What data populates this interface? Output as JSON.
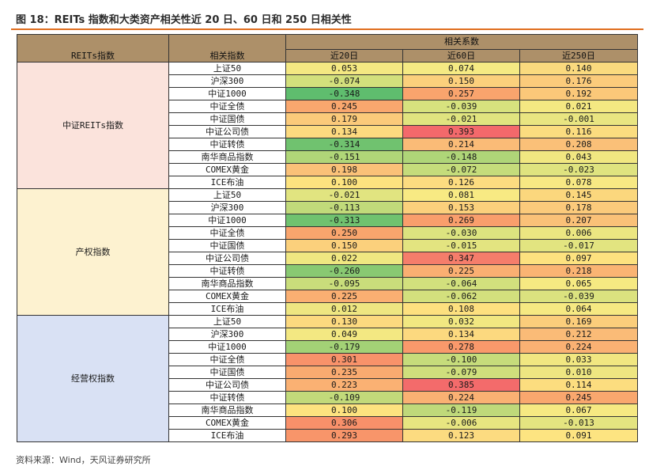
{
  "figure": {
    "title": "图 18：REITs 指数和大类资产相关性近 20 日、60 日和 250 日相关性",
    "source": "资料来源：Wind，天风证券研究所"
  },
  "table": {
    "col_group": "REITs指数",
    "col_index": "相关指数",
    "col_corr": "相关系数",
    "periods": [
      "近20日",
      "近60日",
      "近250日"
    ],
    "groups": [
      {
        "name": "中证REITs指数",
        "rows": [
          {
            "index": "上证50",
            "v": [
              "0.053",
              "0.074",
              "0.140"
            ],
            "c": [
              "#f4e882",
              "#f5ea83",
              "#fada7e"
            ]
          },
          {
            "index": "沪深300",
            "v": [
              "-0.074",
              "0.150",
              "0.176"
            ],
            "c": [
              "#d3e07c",
              "#fbd07c",
              "#fbcb7b"
            ]
          },
          {
            "index": "中证1000",
            "v": [
              "-0.348",
              "0.257",
              "0.192"
            ],
            "c": [
              "#5fbd6e",
              "#f9a46d",
              "#fbc879"
            ]
          },
          {
            "index": "中证全债",
            "v": [
              "0.245",
              "-0.039",
              "0.021"
            ],
            "c": [
              "#f9a76e",
              "#d7e27e",
              "#f4e882"
            ]
          },
          {
            "index": "中证国债",
            "v": [
              "0.179",
              "-0.021",
              "-0.001"
            ],
            "c": [
              "#fbca7a",
              "#e0e47f",
              "#e9e581"
            ]
          },
          {
            "index": "中证公司债",
            "v": [
              "0.134",
              "0.393",
              "0.116"
            ],
            "c": [
              "#fcda7f",
              "#f3696b",
              "#fbdc7f"
            ]
          },
          {
            "index": "中证转债",
            "v": [
              "-0.314",
              "0.214",
              "0.208"
            ],
            "c": [
              "#70c26f",
              "#fabb77",
              "#fac078"
            ]
          },
          {
            "index": "南华商品指数",
            "v": [
              "-0.151",
              "-0.148",
              "0.043"
            ],
            "c": [
              "#b0d678",
              "#afd578",
              "#f1e781"
            ]
          },
          {
            "index": "COMEX黄金",
            "v": [
              "0.198",
              "-0.072",
              "-0.023"
            ],
            "c": [
              "#fac178",
              "#c5dc7b",
              "#dfe37f"
            ]
          },
          {
            "index": "ICE布油",
            "v": [
              "0.100",
              "0.126",
              "0.078"
            ],
            "c": [
              "#fde37f",
              "#fcdc80",
              "#f7e883"
            ]
          }
        ]
      },
      {
        "name": "产权指数",
        "rows": [
          {
            "index": "上证50",
            "v": [
              "-0.021",
              "0.081",
              "0.145"
            ],
            "c": [
              "#e1e480",
              "#f8ea83",
              "#fbd77d"
            ]
          },
          {
            "index": "沪深300",
            "v": [
              "-0.113",
              "0.153",
              "0.178"
            ],
            "c": [
              "#c1da7a",
              "#fbd07c",
              "#fbca7b"
            ]
          },
          {
            "index": "中证1000",
            "v": [
              "-0.313",
              "0.269",
              "0.207"
            ],
            "c": [
              "#70c26f",
              "#f99e6c",
              "#fac178"
            ]
          },
          {
            "index": "中证全债",
            "v": [
              "0.250",
              "-0.030",
              "0.006"
            ],
            "c": [
              "#f9a56d",
              "#dce37f",
              "#ece681"
            ]
          },
          {
            "index": "中证国债",
            "v": [
              "0.150",
              "-0.015",
              "-0.017"
            ],
            "c": [
              "#fbd07c",
              "#e3e480",
              "#e2e480"
            ]
          },
          {
            "index": "中证公司债",
            "v": [
              "0.022",
              "0.347",
              "0.097"
            ],
            "c": [
              "#f0e781",
              "#f57d6b",
              "#fde27f"
            ]
          },
          {
            "index": "中证转债",
            "v": [
              "-0.260",
              "0.225",
              "0.218"
            ],
            "c": [
              "#89c972",
              "#faaf72",
              "#fab473"
            ]
          },
          {
            "index": "南华商品指数",
            "v": [
              "-0.095",
              "-0.064",
              "0.065"
            ],
            "c": [
              "#c9dd7b",
              "#d2e07d",
              "#f6e982"
            ]
          },
          {
            "index": "COMEX黄金",
            "v": [
              "0.225",
              "-0.062",
              "-0.039"
            ],
            "c": [
              "#faaf72",
              "#d3e07d",
              "#dbe27f"
            ]
          },
          {
            "index": "ICE布油",
            "v": [
              "0.012",
              "0.108",
              "0.064"
            ],
            "c": [
              "#eee681",
              "#fde07f",
              "#f6e982"
            ]
          }
        ]
      },
      {
        "name": "经营权指数",
        "rows": [
          {
            "index": "上证50",
            "v": [
              "0.130",
              "0.032",
              "0.169"
            ],
            "c": [
              "#fcd97f",
              "#f1e781",
              "#fbcd7b"
            ]
          },
          {
            "index": "沪深300",
            "v": [
              "0.049",
              "0.134",
              "0.212"
            ],
            "c": [
              "#f3e882",
              "#fcd97f",
              "#fabb77"
            ]
          },
          {
            "index": "中证1000",
            "v": [
              "-0.179",
              "0.278",
              "0.224"
            ],
            "c": [
              "#a3d176",
              "#f9996b",
              "#fab173"
            ]
          },
          {
            "index": "中证全债",
            "v": [
              "0.301",
              "-0.100",
              "0.033"
            ],
            "c": [
              "#f8926a",
              "#c6dc7b",
              "#f1e781"
            ]
          },
          {
            "index": "中证国债",
            "v": [
              "0.235",
              "-0.079",
              "0.010"
            ],
            "c": [
              "#f9aa70",
              "#cfdf7c",
              "#eee681"
            ]
          },
          {
            "index": "中证公司债",
            "v": [
              "0.223",
              "0.385",
              "0.114"
            ],
            "c": [
              "#fab173",
              "#f36b6b",
              "#fcdd7f"
            ]
          },
          {
            "index": "中证转债",
            "v": [
              "-0.109",
              "0.224",
              "0.245"
            ],
            "c": [
              "#c2da7a",
              "#fab173",
              "#f9a76e"
            ]
          },
          {
            "index": "南华商品指数",
            "v": [
              "0.100",
              "-0.119",
              "0.067"
            ],
            "c": [
              "#fde37f",
              "#bfd97a",
              "#f6e982"
            ]
          },
          {
            "index": "COMEX黄金",
            "v": [
              "0.306",
              "-0.006",
              "-0.013"
            ],
            "c": [
              "#f8906a",
              "#e7e580",
              "#e4e480"
            ]
          },
          {
            "index": "ICE布油",
            "v": [
              "0.293",
              "0.123",
              "0.091"
            ],
            "c": [
              "#f8956a",
              "#fcdb80",
              "#fde481"
            ]
          }
        ]
      }
    ]
  }
}
